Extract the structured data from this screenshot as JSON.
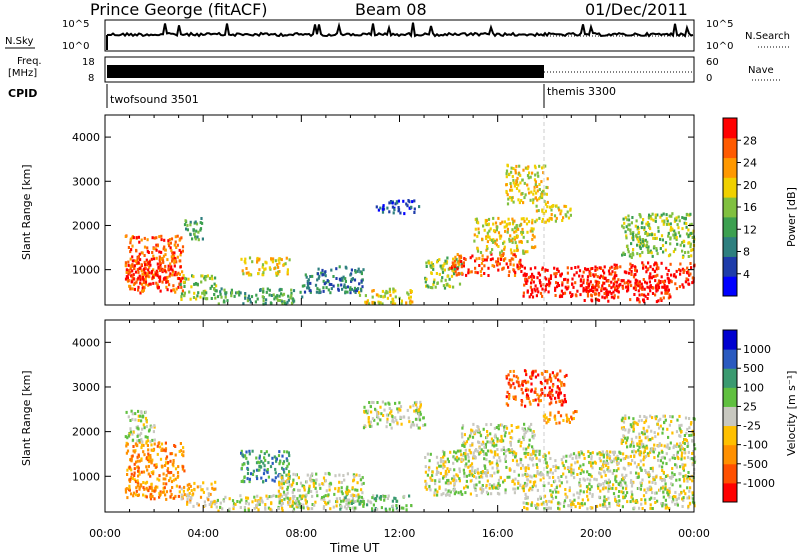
{
  "header": {
    "station": "Prince George (fitACF)",
    "beam": "Beam 08",
    "date": "01/Dec/2011"
  },
  "strip_panels": {
    "nsky_label": "N.Sky",
    "nsky_ticks": [
      "10^5",
      "10^0"
    ],
    "nsearch_label": "N.Search",
    "nsearch_ticks": [
      "10^5",
      "10^0"
    ],
    "freq_label_line1": "Freq.",
    "freq_label_line2": "[MHz]",
    "freq_ticks": [
      "18",
      "8"
    ],
    "nave_label": "Nave",
    "nave_ticks": [
      "60",
      "0"
    ],
    "cpid_label": "CPID",
    "modes": [
      {
        "name": "twofsound 3501",
        "start_hour": 0.75,
        "end_hour": 18.0
      },
      {
        "name": "themis 3300",
        "start_hour": 18.0,
        "end_hour": 24.0
      }
    ]
  },
  "chart_data": [
    {
      "type": "heatmap",
      "name": "power",
      "ylabel": "Slant Range [km]",
      "xlim": [
        0,
        24
      ],
      "ylim": [
        200,
        4500
      ],
      "colorbar_label": "Power [dB]",
      "colorbar_ticks": [
        "28",
        "24",
        "20",
        "16",
        "12",
        "8",
        "4"
      ],
      "colors": [
        "#0000ff",
        "#1e3caa",
        "#2e7f7f",
        "#3ca050",
        "#80c040",
        "#f0d000",
        "#ff9800",
        "#ff5a00",
        "#ff0000"
      ],
      "regions": [
        {
          "t0": 0.8,
          "t1": 3.2,
          "r0": 500,
          "r1": 1800,
          "level": 7
        },
        {
          "t0": 0.8,
          "t1": 2.8,
          "r0": 700,
          "r1": 1200,
          "level": 8
        },
        {
          "t0": 3.0,
          "t1": 4.5,
          "r0": 350,
          "r1": 900,
          "level": 4
        },
        {
          "t0": 3.2,
          "t1": 4.0,
          "r0": 1700,
          "r1": 2200,
          "level": 3
        },
        {
          "t0": 4.5,
          "t1": 8.0,
          "r0": 250,
          "r1": 600,
          "level": 3
        },
        {
          "t0": 5.5,
          "t1": 7.5,
          "r0": 900,
          "r1": 1300,
          "level": 5
        },
        {
          "t0": 8.0,
          "t1": 10.5,
          "r0": 500,
          "r1": 1100,
          "level": 2
        },
        {
          "t0": 10.3,
          "t1": 12.5,
          "r0": 250,
          "r1": 600,
          "level": 5
        },
        {
          "t0": 11.0,
          "t1": 12.8,
          "r0": 2300,
          "r1": 2600,
          "level": 1
        },
        {
          "t0": 13.0,
          "t1": 14.5,
          "r0": 600,
          "r1": 1300,
          "level": 4
        },
        {
          "t0": 14.0,
          "t1": 17.0,
          "r0": 900,
          "r1": 1400,
          "level": 7
        },
        {
          "t0": 15.0,
          "t1": 17.5,
          "r0": 1400,
          "r1": 2200,
          "level": 5
        },
        {
          "t0": 16.3,
          "t1": 18.0,
          "r0": 2500,
          "r1": 3400,
          "level": 5
        },
        {
          "t0": 17.5,
          "t1": 19.0,
          "r0": 2100,
          "r1": 2500,
          "level": 5
        },
        {
          "t0": 17.0,
          "t1": 20.5,
          "r0": 400,
          "r1": 1100,
          "level": 8
        },
        {
          "t0": 19.5,
          "t1": 23.0,
          "r0": 300,
          "r1": 800,
          "level": 8
        },
        {
          "t0": 20.5,
          "t1": 24.0,
          "r0": 600,
          "r1": 1200,
          "level": 8
        },
        {
          "t0": 21.0,
          "t1": 24.0,
          "r0": 1300,
          "r1": 2300,
          "level": 4
        }
      ]
    },
    {
      "type": "heatmap",
      "name": "velocity",
      "ylabel": "Slant Range [km]",
      "xlabel": "Time UT",
      "xlim": [
        0,
        24
      ],
      "ylim": [
        200,
        4500
      ],
      "x_ticks": [
        "00:00",
        "04:00",
        "08:00",
        "12:00",
        "16:00",
        "20:00",
        "00:00"
      ],
      "colorbar_label": "Velocity [m s⁻¹]",
      "colorbar_ticks": [
        "1000",
        "500",
        "100",
        "25",
        "-25",
        "-100",
        "-500",
        "-1000"
      ],
      "colors": [
        "#ff0000",
        "#ff5000",
        "#ff9000",
        "#ffc000",
        "#c8c8c0",
        "#60c040",
        "#3a9a70",
        "#2a5ac0",
        "#0000d0"
      ],
      "regions": [
        {
          "t0": 0.8,
          "t1": 3.2,
          "r0": 500,
          "r1": 1800,
          "level": 2
        },
        {
          "t0": 0.8,
          "t1": 2.0,
          "r0": 1800,
          "r1": 2500,
          "level": 4
        },
        {
          "t0": 3.0,
          "t1": 4.5,
          "r0": 350,
          "r1": 900,
          "level": 3
        },
        {
          "t0": 4.5,
          "t1": 8.0,
          "r0": 250,
          "r1": 600,
          "level": 4
        },
        {
          "t0": 5.5,
          "t1": 7.5,
          "r0": 900,
          "r1": 1600,
          "level": 6
        },
        {
          "t0": 7.0,
          "t1": 10.5,
          "r0": 300,
          "r1": 1100,
          "level": 4
        },
        {
          "t0": 9.5,
          "t1": 12.5,
          "r0": 250,
          "r1": 600,
          "level": 5
        },
        {
          "t0": 10.5,
          "t1": 13.0,
          "r0": 2100,
          "r1": 2700,
          "level": 4
        },
        {
          "t0": 13.0,
          "t1": 17.0,
          "r0": 600,
          "r1": 1600,
          "level": 4
        },
        {
          "t0": 14.5,
          "t1": 17.5,
          "r0": 1500,
          "r1": 2200,
          "level": 4
        },
        {
          "t0": 16.3,
          "t1": 18.8,
          "r0": 2600,
          "r1": 3400,
          "level": 1
        },
        {
          "t0": 17.8,
          "t1": 19.2,
          "r0": 2200,
          "r1": 2500,
          "level": 2
        },
        {
          "t0": 17.0,
          "t1": 24.0,
          "r0": 300,
          "r1": 1600,
          "level": 4
        },
        {
          "t0": 21.0,
          "t1": 24.0,
          "r0": 1600,
          "r1": 2400,
          "level": 4
        }
      ]
    }
  ]
}
